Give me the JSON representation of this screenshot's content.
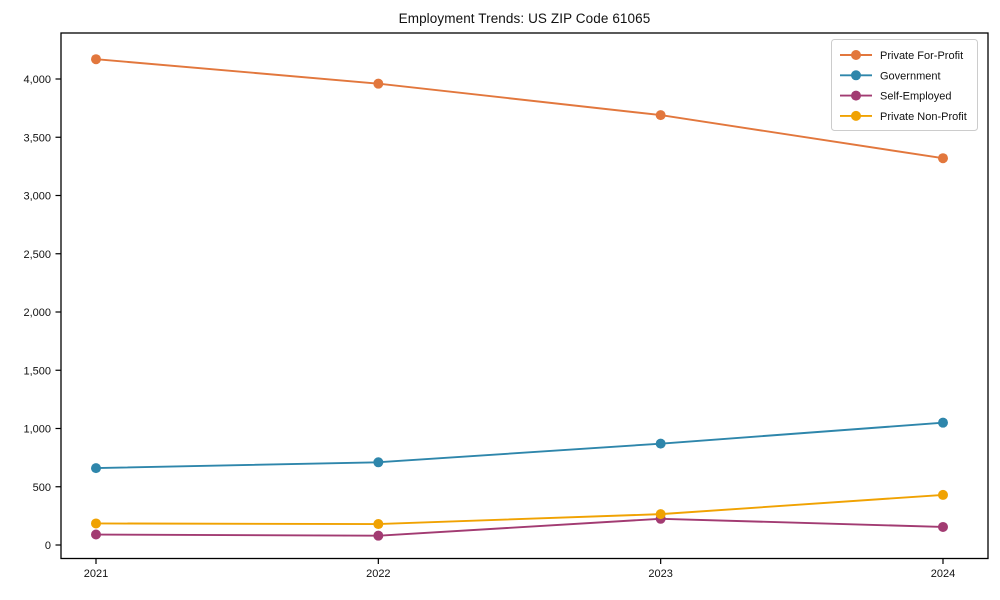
{
  "window": {
    "title": "Employment Trends: US ZIP Code 61065"
  },
  "chart_data": {
    "type": "line",
    "title": "Employment Trends: US ZIP Code 61065",
    "x": [
      2021,
      2022,
      2023,
      2024
    ],
    "x_tick_labels": [
      "2021",
      "2022",
      "2023",
      "2024"
    ],
    "series": [
      {
        "name": "Private For-Profit",
        "color": "#E2773D",
        "values": [
          4170,
          3960,
          3690,
          3320
        ]
      },
      {
        "name": "Government",
        "color": "#2E86AB",
        "values": [
          660,
          710,
          870,
          1050
        ]
      },
      {
        "name": "Self-Employed",
        "color": "#A23B72",
        "values": [
          90,
          80,
          225,
          155
        ]
      },
      {
        "name": "Private Non-Profit",
        "color": "#F0A202",
        "values": [
          185,
          180,
          265,
          430
        ]
      }
    ],
    "yticks": [
      0,
      500,
      1000,
      1500,
      2000,
      2500,
      3000,
      3500,
      4000
    ],
    "ytick_labels": [
      "0",
      "500",
      "1,000",
      "1,500",
      "2,000",
      "2,500",
      "3,000",
      "3,500",
      "4,000"
    ],
    "ylim": [
      -130,
      4400
    ],
    "xlabel": "",
    "ylabel": "",
    "grid": false,
    "legend_position": "upper right",
    "marker": "circle",
    "axis_color": "#000000",
    "legend_border_color": "#cccccc",
    "legend_background": "#ffffff"
  }
}
